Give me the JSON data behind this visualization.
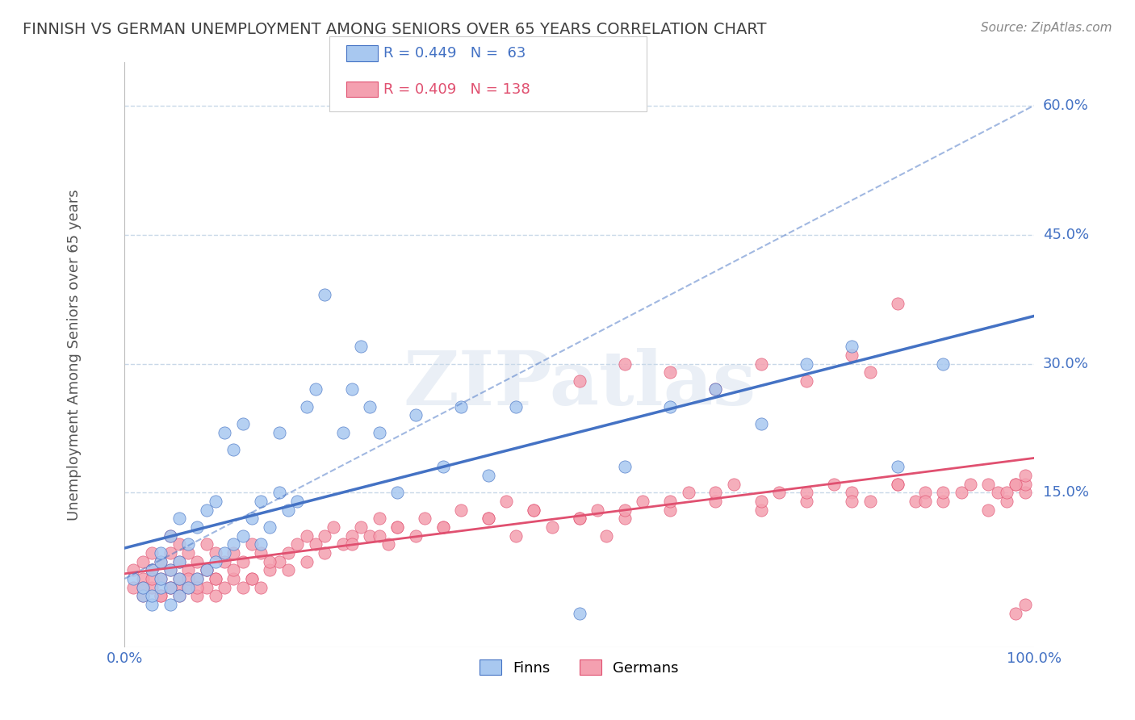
{
  "title": "FINNISH VS GERMAN UNEMPLOYMENT AMONG SENIORS OVER 65 YEARS CORRELATION CHART",
  "source": "Source: ZipAtlas.com",
  "ylabel": "Unemployment Among Seniors over 65 years",
  "xlabel_ticks": [
    "0.0%",
    "100.0%"
  ],
  "ytick_labels": [
    "60.0%",
    "45.0%",
    "30.0%",
    "15.0%"
  ],
  "ytick_values": [
    0.6,
    0.45,
    0.3,
    0.15
  ],
  "legend_label1": "Finns",
  "legend_label2": "Germans",
  "legend_r1": "R = 0.449",
  "legend_n1": "N =  63",
  "legend_r2": "R = 0.409",
  "legend_n2": "N = 138",
  "finn_color": "#a8c8f0",
  "finn_line_color": "#4472c4",
  "german_color": "#f4a0b0",
  "german_line_color": "#e05070",
  "finn_scatter_x": [
    0.01,
    0.02,
    0.02,
    0.03,
    0.03,
    0.03,
    0.04,
    0.04,
    0.04,
    0.04,
    0.05,
    0.05,
    0.05,
    0.05,
    0.06,
    0.06,
    0.06,
    0.06,
    0.07,
    0.07,
    0.08,
    0.08,
    0.09,
    0.09,
    0.1,
    0.1,
    0.11,
    0.11,
    0.12,
    0.12,
    0.13,
    0.13,
    0.14,
    0.15,
    0.15,
    0.16,
    0.17,
    0.17,
    0.18,
    0.19,
    0.2,
    0.21,
    0.22,
    0.24,
    0.25,
    0.26,
    0.27,
    0.28,
    0.3,
    0.32,
    0.35,
    0.37,
    0.4,
    0.43,
    0.5,
    0.55,
    0.6,
    0.65,
    0.7,
    0.75,
    0.8,
    0.85,
    0.9
  ],
  "finn_scatter_y": [
    0.05,
    0.03,
    0.04,
    0.02,
    0.03,
    0.06,
    0.04,
    0.05,
    0.07,
    0.08,
    0.02,
    0.04,
    0.06,
    0.1,
    0.03,
    0.05,
    0.07,
    0.12,
    0.04,
    0.09,
    0.05,
    0.11,
    0.06,
    0.13,
    0.07,
    0.14,
    0.08,
    0.22,
    0.09,
    0.2,
    0.1,
    0.23,
    0.12,
    0.09,
    0.14,
    0.11,
    0.22,
    0.15,
    0.13,
    0.14,
    0.25,
    0.27,
    0.38,
    0.22,
    0.27,
    0.32,
    0.25,
    0.22,
    0.15,
    0.24,
    0.18,
    0.25,
    0.17,
    0.25,
    0.01,
    0.18,
    0.25,
    0.27,
    0.23,
    0.3,
    0.32,
    0.18,
    0.3
  ],
  "german_scatter_x": [
    0.01,
    0.01,
    0.02,
    0.02,
    0.02,
    0.03,
    0.03,
    0.03,
    0.04,
    0.04,
    0.04,
    0.05,
    0.05,
    0.05,
    0.05,
    0.06,
    0.06,
    0.06,
    0.06,
    0.07,
    0.07,
    0.07,
    0.08,
    0.08,
    0.08,
    0.09,
    0.09,
    0.09,
    0.1,
    0.1,
    0.1,
    0.11,
    0.11,
    0.12,
    0.12,
    0.13,
    0.13,
    0.14,
    0.14,
    0.15,
    0.15,
    0.16,
    0.17,
    0.18,
    0.19,
    0.2,
    0.21,
    0.22,
    0.23,
    0.24,
    0.25,
    0.26,
    0.27,
    0.28,
    0.29,
    0.3,
    0.32,
    0.33,
    0.35,
    0.37,
    0.4,
    0.42,
    0.43,
    0.45,
    0.47,
    0.5,
    0.52,
    0.53,
    0.55,
    0.57,
    0.6,
    0.62,
    0.65,
    0.67,
    0.7,
    0.72,
    0.75,
    0.78,
    0.8,
    0.82,
    0.85,
    0.87,
    0.88,
    0.9,
    0.92,
    0.93,
    0.95,
    0.96,
    0.97,
    0.98,
    0.99,
    0.99,
    0.02,
    0.03,
    0.04,
    0.05,
    0.06,
    0.07,
    0.08,
    0.09,
    0.1,
    0.12,
    0.14,
    0.16,
    0.18,
    0.2,
    0.22,
    0.25,
    0.28,
    0.3,
    0.35,
    0.4,
    0.45,
    0.5,
    0.55,
    0.6,
    0.65,
    0.7,
    0.75,
    0.8,
    0.85,
    0.9,
    0.95,
    0.97,
    0.98,
    0.99,
    0.99,
    0.98,
    0.5,
    0.55,
    0.6,
    0.65,
    0.7,
    0.75,
    0.8,
    0.82,
    0.85,
    0.88
  ],
  "german_scatter_y": [
    0.04,
    0.06,
    0.05,
    0.07,
    0.03,
    0.04,
    0.06,
    0.08,
    0.03,
    0.05,
    0.07,
    0.04,
    0.06,
    0.08,
    0.1,
    0.04,
    0.05,
    0.07,
    0.09,
    0.04,
    0.06,
    0.08,
    0.03,
    0.05,
    0.07,
    0.04,
    0.06,
    0.09,
    0.03,
    0.05,
    0.08,
    0.04,
    0.07,
    0.05,
    0.08,
    0.04,
    0.07,
    0.05,
    0.09,
    0.04,
    0.08,
    0.06,
    0.07,
    0.08,
    0.09,
    0.1,
    0.09,
    0.1,
    0.11,
    0.09,
    0.1,
    0.11,
    0.1,
    0.12,
    0.09,
    0.11,
    0.1,
    0.12,
    0.11,
    0.13,
    0.12,
    0.14,
    0.1,
    0.13,
    0.11,
    0.12,
    0.13,
    0.1,
    0.12,
    0.14,
    0.13,
    0.15,
    0.14,
    0.16,
    0.13,
    0.15,
    0.14,
    0.16,
    0.15,
    0.14,
    0.16,
    0.14,
    0.15,
    0.14,
    0.15,
    0.16,
    0.13,
    0.15,
    0.14,
    0.16,
    0.15,
    0.16,
    0.04,
    0.05,
    0.03,
    0.04,
    0.03,
    0.05,
    0.04,
    0.06,
    0.05,
    0.06,
    0.05,
    0.07,
    0.06,
    0.07,
    0.08,
    0.09,
    0.1,
    0.11,
    0.11,
    0.12,
    0.13,
    0.12,
    0.13,
    0.14,
    0.15,
    0.14,
    0.15,
    0.14,
    0.16,
    0.15,
    0.16,
    0.15,
    0.16,
    0.17,
    0.02,
    0.01,
    0.28,
    0.3,
    0.29,
    0.27,
    0.3,
    0.28,
    0.31,
    0.29,
    0.37,
    0.14
  ],
  "finn_line_x": [
    0.0,
    1.0
  ],
  "finn_line_y_start": 0.02,
  "finn_line_y_end": 0.35,
  "german_line_x": [
    0.0,
    1.0
  ],
  "german_line_y_start": 0.01,
  "german_line_y_end": 0.16,
  "finn_ci_line_y_start": 0.05,
  "finn_ci_line_y_end": 0.6,
  "xlim": [
    0.0,
    1.0
  ],
  "ylim": [
    -0.03,
    0.65
  ],
  "background_color": "#ffffff",
  "grid_color": "#c8d8e8",
  "title_color": "#404040",
  "axis_color": "#4472c4",
  "watermark": "ZIPatlas"
}
